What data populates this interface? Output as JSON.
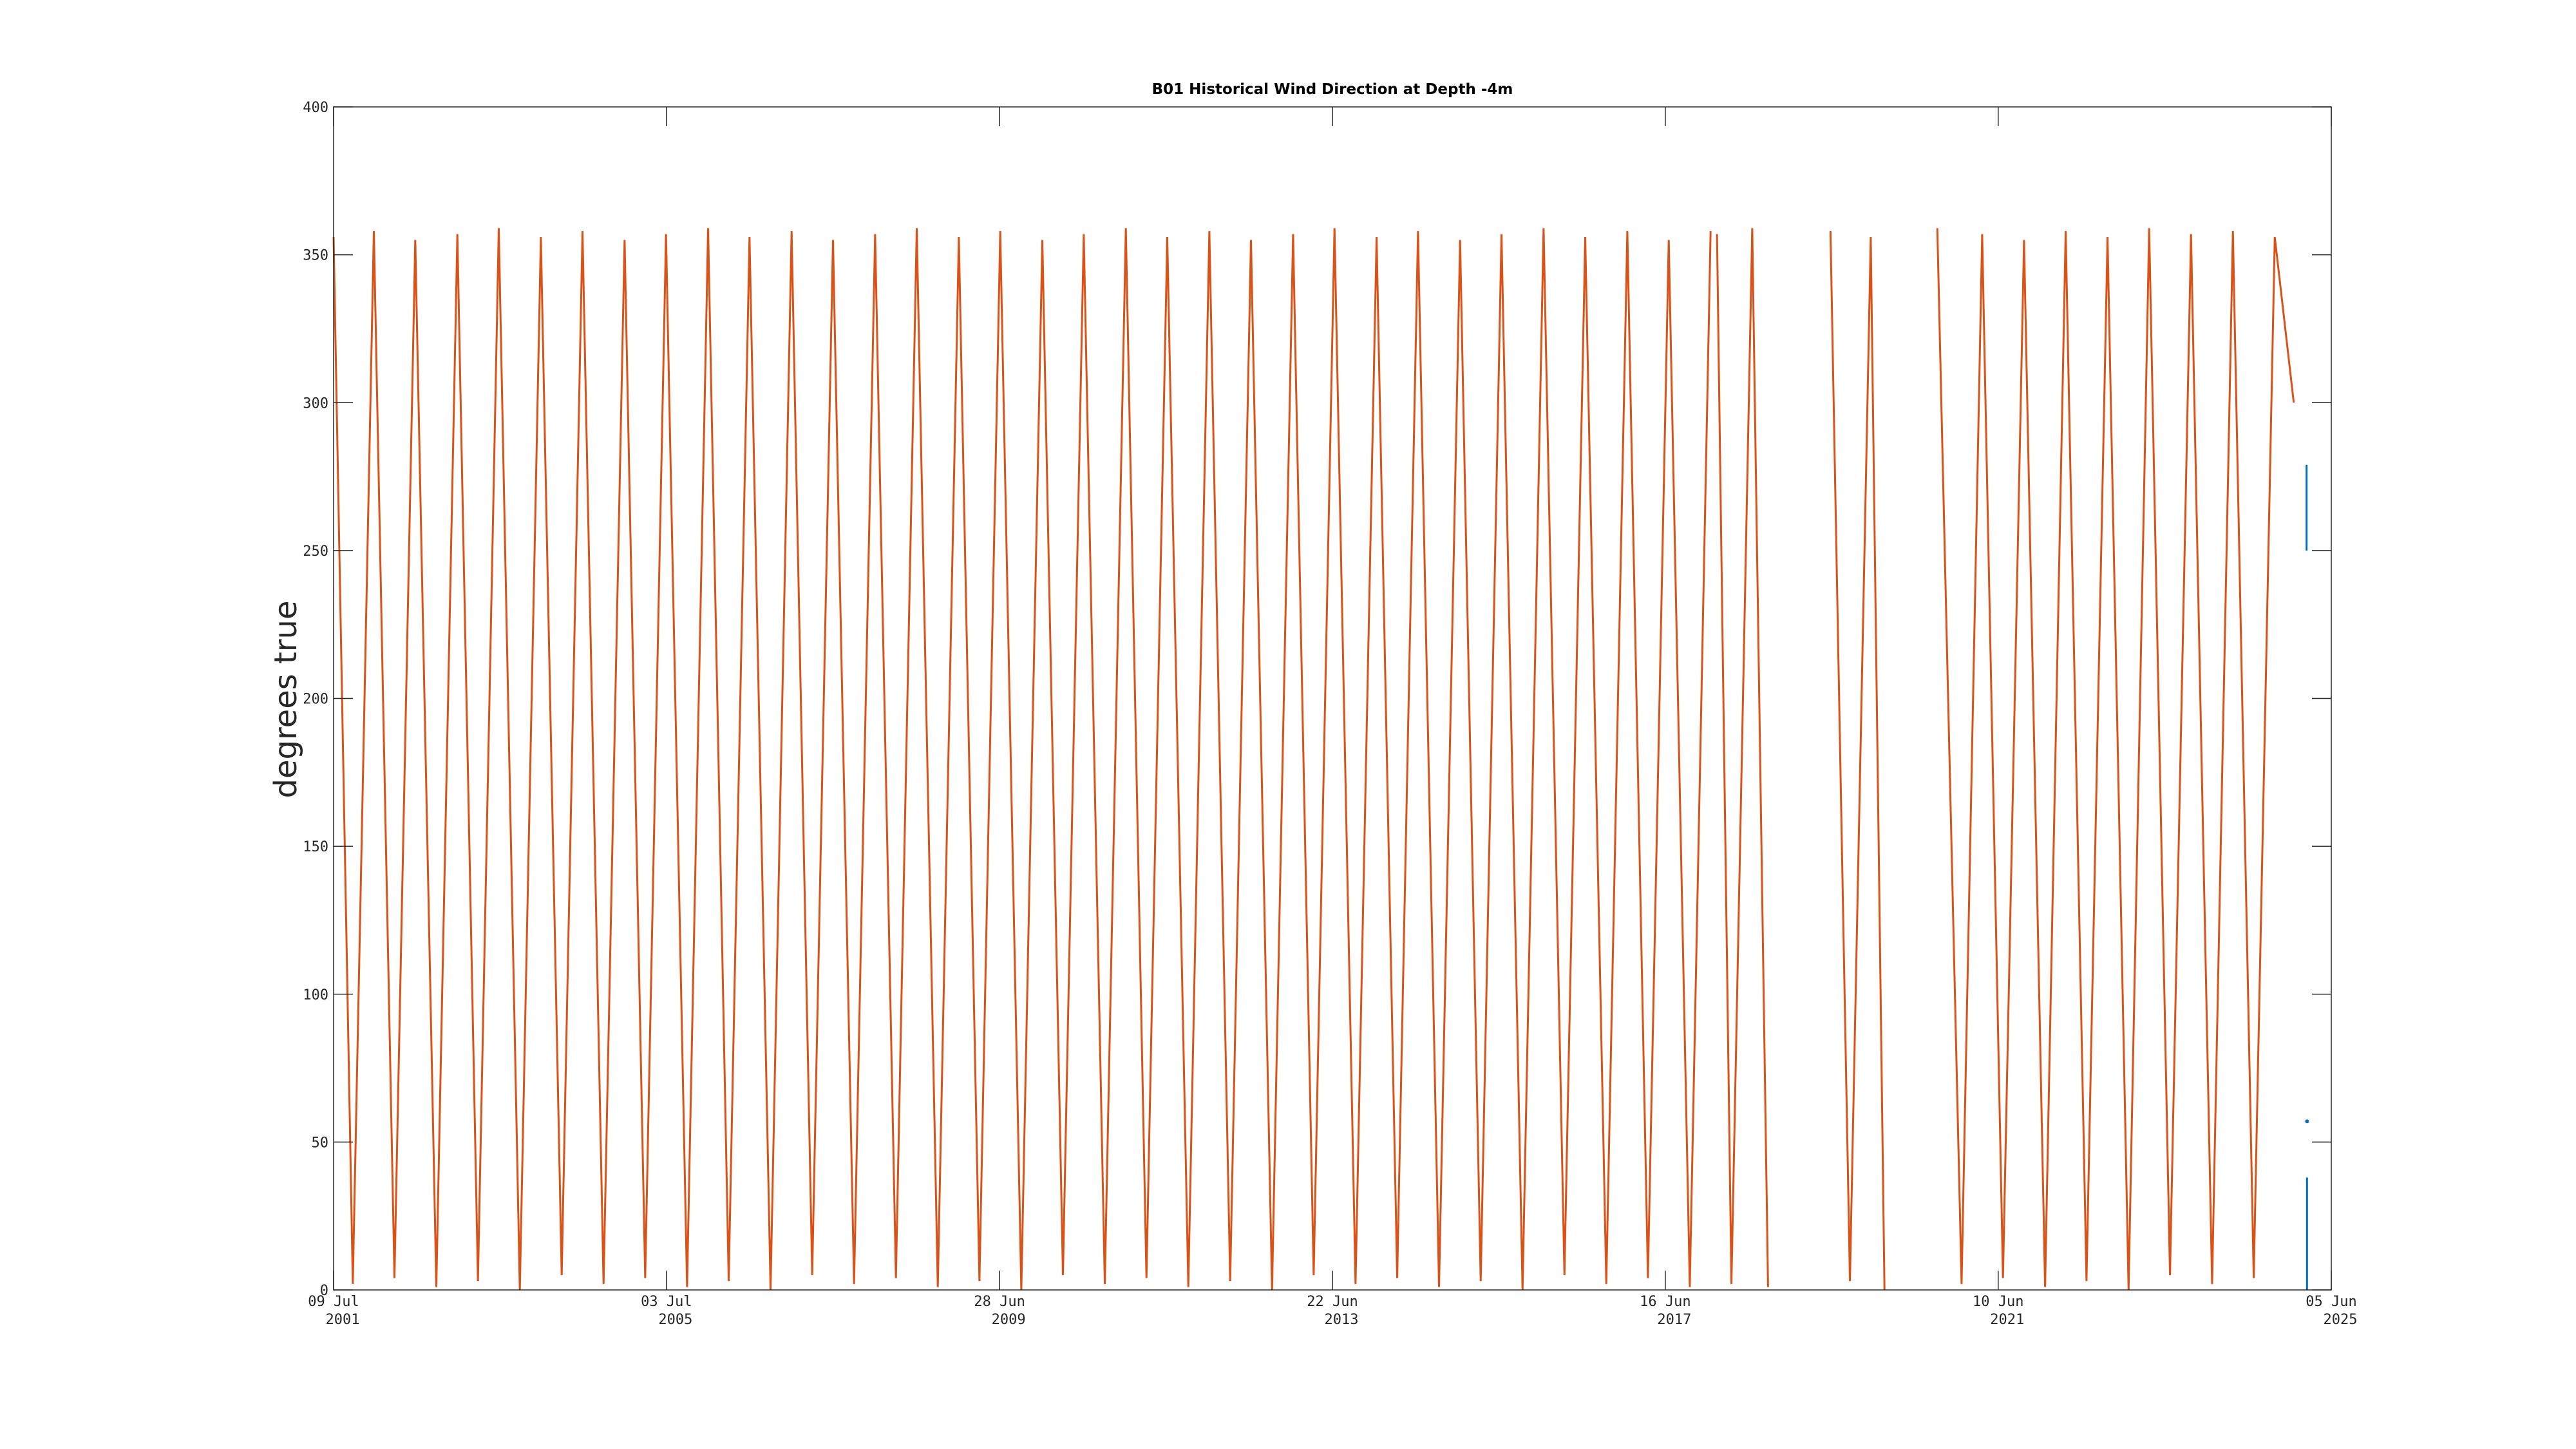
{
  "chart_data": {
    "type": "line",
    "title": "B01 Historical Wind Direction at Depth -4m",
    "y_label": "degrees true",
    "xlim": [
      "2001-07-09",
      "2025-06-05"
    ],
    "xticks": [
      {
        "value": "2001-07-09",
        "label": [
          "09 Jul",
          "2001"
        ]
      },
      {
        "value": "2005-07-03",
        "label": [
          "03 Jul",
          "2005"
        ]
      },
      {
        "value": "2009-06-28",
        "label": [
          "28 Jun",
          "2009"
        ]
      },
      {
        "value": "2013-06-22",
        "label": [
          "22 Jun",
          "2013"
        ]
      },
      {
        "value": "2017-06-16",
        "label": [
          "16 Jun",
          "2017"
        ]
      },
      {
        "value": "2021-06-10",
        "label": [
          "10 Jun",
          "2021"
        ]
      },
      {
        "value": "2025-06-05",
        "label": [
          "05 Jun",
          "2025"
        ]
      }
    ],
    "ylim": [
      0,
      400
    ],
    "yticks": [
      0,
      50,
      100,
      150,
      200,
      250,
      300,
      350,
      400
    ],
    "grid": false,
    "series": [
      {
        "color": "#D95319",
        "x": [
          "2001-07-09",
          "2001-10-01",
          "2002-01-01",
          "2002-04-01",
          "2002-07-01",
          "2002-10-01",
          "2003-01-01",
          "2003-04-01",
          "2003-07-01",
          "2003-10-01",
          "2004-01-01",
          "2004-04-01",
          "2004-07-01",
          "2004-10-01",
          "2005-01-01",
          "2005-04-01",
          "2005-07-01",
          "2005-10-01",
          "2006-01-01",
          "2006-04-01",
          "2006-07-01",
          "2006-10-01",
          "2007-01-01",
          "2007-04-01",
          "2007-07-01",
          "2007-10-01",
          "2008-01-01",
          "2008-04-01",
          "2008-07-01",
          "2008-10-01",
          "2009-01-01",
          "2009-04-01",
          "2009-07-01",
          "2009-10-01",
          "2010-01-01",
          "2010-04-01",
          "2010-07-01",
          "2010-10-01",
          "2011-01-01",
          "2011-04-01",
          "2011-07-01",
          "2011-10-01",
          "2012-01-01",
          "2012-04-01",
          "2012-07-01",
          "2012-10-01",
          "2013-01-01",
          "2013-04-01",
          "2013-07-01",
          "2013-10-01",
          "2014-01-01",
          "2014-04-01",
          "2014-07-01",
          "2014-10-01",
          "2015-01-01",
          "2015-04-01",
          "2015-07-01",
          "2015-10-01",
          "2016-01-01",
          "2016-04-01",
          "2016-07-01",
          "2016-10-01",
          "2017-01-01",
          "2017-04-01",
          "2017-07-01",
          "2017-10-01",
          "2017-12-31",
          "2018-01-15",
          "2018-01-28",
          "2018-04-01",
          "2018-07-01",
          "2018-09-08",
          "2019-01-01",
          "2019-06-08",
          "2019-09-01",
          "2019-12-01",
          "2020-01-30",
          "2020-05-01",
          "2020-09-17",
          "2021-01-01",
          "2021-04-01",
          "2021-07-01",
          "2021-10-01",
          "2022-01-01",
          "2022-04-01",
          "2022-07-01",
          "2022-10-01",
          "2023-01-01",
          "2023-04-01",
          "2023-07-01",
          "2023-10-01",
          "2024-01-01",
          "2024-04-01",
          "2024-07-01",
          "2024-10-01",
          "2024-12-23"
        ],
        "values": [
          356,
          2,
          358,
          4,
          355,
          1,
          357,
          3,
          359,
          0,
          356,
          5,
          358,
          2,
          355,
          4,
          357,
          1,
          359,
          3,
          356,
          0,
          358,
          5,
          355,
          2,
          357,
          4,
          359,
          1,
          356,
          3,
          358,
          0,
          355,
          5,
          357,
          2,
          359,
          4,
          356,
          1,
          358,
          3,
          355,
          0,
          357,
          5,
          359,
          2,
          356,
          4,
          358,
          1,
          355,
          3,
          357,
          0,
          359,
          5,
          356,
          2,
          358,
          4,
          355,
          1,
          358,
          null,
          357,
          2,
          359,
          1,
          null,
          358,
          3,
          356,
          0,
          null,
          359,
          2,
          357,
          4,
          355,
          1,
          358,
          3,
          356,
          0,
          359,
          5,
          357,
          2,
          358,
          4,
          356,
          300
        ]
      },
      {
        "color": "#0072BD",
        "x": [
          "2025-02-17",
          "2025-02-17",
          "2025-02-18",
          "2025-02-19",
          "2025-02-19",
          "2025-02-19",
          "2025-02-19"
        ],
        "values": [
          279,
          250,
          null,
          57,
          null,
          38,
          0
        ]
      }
    ]
  }
}
